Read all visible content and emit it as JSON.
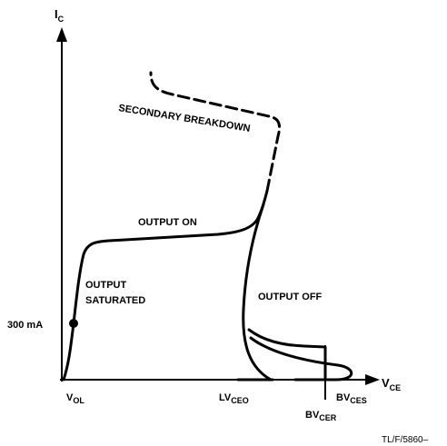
{
  "labels": {
    "y_axis": {
      "main": "I",
      "sub": "C"
    },
    "x_axis": {
      "main": "V",
      "sub": "CE"
    },
    "current": "300 mA",
    "v_ol": {
      "main": "V",
      "sub": "OL"
    },
    "lv_ceo": {
      "main": "LV",
      "sub": "CEO"
    },
    "bv_cer": {
      "main": "BV",
      "sub": "CER"
    },
    "bv_ces": {
      "main": "BV",
      "sub": "CES"
    },
    "output_on": "OUTPUT ON",
    "output_saturated": [
      "OUTPUT",
      "SATURATED"
    ],
    "output_off": "OUTPUT OFF",
    "secondary_breakdown": "SECONDARY BREAKDOWN",
    "figure_id": "TL/F/5860–"
  }
}
